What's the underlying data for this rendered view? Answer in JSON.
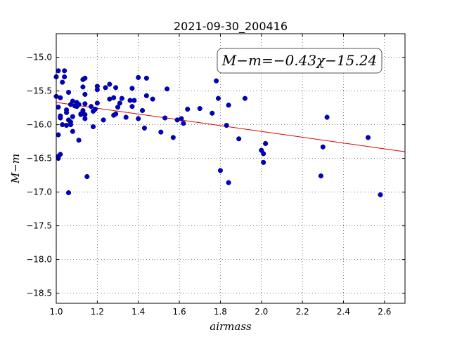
{
  "chart_data": {
    "type": "scatter",
    "title": "2021-09-30_200416",
    "xlabel": "airmass",
    "ylabel": "M−m",
    "xlim": [
      1.0,
      2.7
    ],
    "ylim": [
      -18.65,
      -14.65
    ],
    "y_inverted": true,
    "grid": true,
    "xticks": [
      "1.0",
      "1.2",
      "1.4",
      "1.6",
      "1.8",
      "2.0",
      "2.2",
      "2.4",
      "2.6"
    ],
    "yticks": [
      "−15.0",
      "−15.5",
      "−16.0",
      "−16.5",
      "−17.0",
      "−17.5",
      "−18.0",
      "−18.5"
    ],
    "annotation": "M−m=−0.43χ−15.24",
    "marker_color": "#0000cc",
    "fit_line_color": "#dd0000",
    "fit": {
      "slope": -0.43,
      "intercept": -15.24
    },
    "points": [
      [
        1.0,
        -15.29
      ],
      [
        1.0,
        -15.58
      ],
      [
        1.01,
        -15.2
      ],
      [
        1.01,
        -16.15
      ],
      [
        1.01,
        -15.74
      ],
      [
        1.01,
        -16.47
      ],
      [
        1.01,
        -16.5
      ],
      [
        1.02,
        -16.44
      ],
      [
        1.02,
        -15.9
      ],
      [
        1.02,
        -15.6
      ],
      [
        1.02,
        -15.87
      ],
      [
        1.03,
        -15.37
      ],
      [
        1.03,
        -16.0
      ],
      [
        1.04,
        -15.2
      ],
      [
        1.04,
        -15.29
      ],
      [
        1.05,
        -15.82
      ],
      [
        1.05,
        -16.01
      ],
      [
        1.05,
        -15.78
      ],
      [
        1.06,
        -15.52
      ],
      [
        1.06,
        -15.93
      ],
      [
        1.06,
        -17.01
      ],
      [
        1.07,
        -15.96
      ],
      [
        1.07,
        -16.0
      ],
      [
        1.07,
        -15.7
      ],
      [
        1.08,
        -15.88
      ],
      [
        1.08,
        -16.1
      ],
      [
        1.08,
        -15.65
      ],
      [
        1.09,
        -15.72
      ],
      [
        1.1,
        -15.67
      ],
      [
        1.1,
        -15.73
      ],
      [
        1.11,
        -16.23
      ],
      [
        1.11,
        -15.7
      ],
      [
        1.12,
        -15.84
      ],
      [
        1.12,
        -15.85
      ],
      [
        1.13,
        -15.33
      ],
      [
        1.13,
        -15.44
      ],
      [
        1.13,
        -15.79
      ],
      [
        1.14,
        -15.31
      ],
      [
        1.14,
        -15.55
      ],
      [
        1.14,
        -15.85
      ],
      [
        1.14,
        -15.91
      ],
      [
        1.14,
        -15.69
      ],
      [
        1.15,
        -16.77
      ],
      [
        1.17,
        -15.73
      ],
      [
        1.18,
        -16.03
      ],
      [
        1.18,
        -15.8
      ],
      [
        1.19,
        -15.77
      ],
      [
        1.2,
        -15.43
      ],
      [
        1.2,
        -15.48
      ],
      [
        1.2,
        -15.68
      ],
      [
        1.23,
        -15.93
      ],
      [
        1.24,
        -15.45
      ],
      [
        1.26,
        -15.4
      ],
      [
        1.26,
        -15.62
      ],
      [
        1.28,
        -15.6
      ],
      [
        1.28,
        -15.86
      ],
      [
        1.29,
        -15.84
      ],
      [
        1.29,
        -15.45
      ],
      [
        1.3,
        -15.74
      ],
      [
        1.31,
        -15.68
      ],
      [
        1.32,
        -15.61
      ],
      [
        1.34,
        -15.89
      ],
      [
        1.36,
        -15.64
      ],
      [
        1.37,
        -15.46
      ],
      [
        1.37,
        -15.73
      ],
      [
        1.38,
        -15.64
      ],
      [
        1.4,
        -15.3
      ],
      [
        1.4,
        -15.91
      ],
      [
        1.42,
        -15.79
      ],
      [
        1.43,
        -16.05
      ],
      [
        1.44,
        -15.31
      ],
      [
        1.44,
        -15.57
      ],
      [
        1.47,
        -15.62
      ],
      [
        1.51,
        -16.11
      ],
      [
        1.53,
        -15.9
      ],
      [
        1.54,
        -15.47
      ],
      [
        1.57,
        -16.19
      ],
      [
        1.59,
        -15.93
      ],
      [
        1.61,
        -15.91
      ],
      [
        1.62,
        -15.98
      ],
      [
        1.64,
        -15.77
      ],
      [
        1.7,
        -15.76
      ],
      [
        1.76,
        -15.83
      ],
      [
        1.78,
        -15.35
      ],
      [
        1.79,
        -15.61
      ],
      [
        1.8,
        -16.68
      ],
      [
        1.83,
        -16.01
      ],
      [
        1.84,
        -15.71
      ],
      [
        1.84,
        -16.86
      ],
      [
        1.89,
        -16.21
      ],
      [
        1.92,
        -15.61
      ],
      [
        2.0,
        -16.38
      ],
      [
        2.01,
        -16.43
      ],
      [
        2.01,
        -16.56
      ],
      [
        2.02,
        -16.28
      ],
      [
        2.29,
        -16.76
      ],
      [
        2.3,
        -16.33
      ],
      [
        2.32,
        -15.89
      ],
      [
        2.52,
        -16.19
      ],
      [
        2.58,
        -17.04
      ]
    ]
  }
}
